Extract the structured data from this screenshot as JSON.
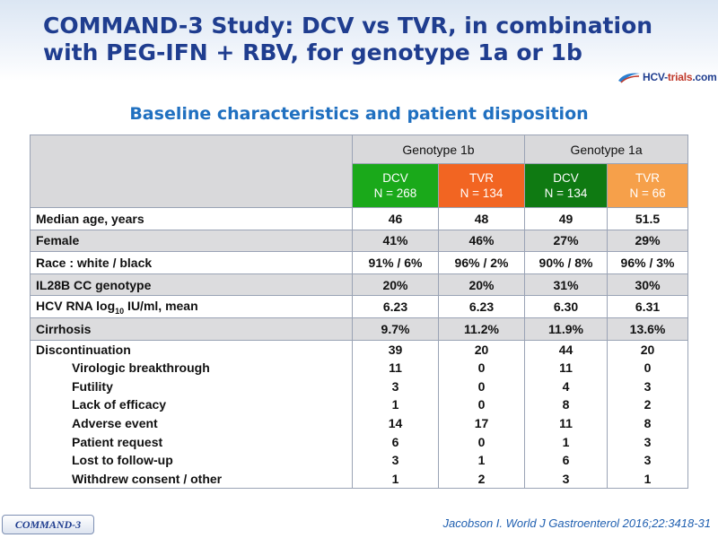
{
  "header": {
    "title_line1": "COMMAND-3 Study: DCV vs TVR, in combination",
    "title_line2": "with PEG-IFN + RBV, for genotype 1a or 1b",
    "logo_text_main": "HCV-",
    "logo_text_accent": "trials",
    "logo_text_end": ".com"
  },
  "subtitle": "Baseline characteristics and patient disposition",
  "table": {
    "genotype_headers": [
      "Genotype 1b",
      "Genotype 1a"
    ],
    "arms": [
      {
        "name": "DCV",
        "n": "N = 268",
        "color": "#1aa91a"
      },
      {
        "name": "TVR",
        "n": "N = 134",
        "color": "#f26522"
      },
      {
        "name": "DCV",
        "n": "N = 134",
        "color": "#0f7a12"
      },
      {
        "name": "TVR",
        "n": "N = 66",
        "color": "#f6a04a"
      }
    ],
    "rows": [
      {
        "label": "Median age, years",
        "values": [
          "46",
          "48",
          "49",
          "51.5"
        ]
      },
      {
        "label": "Female",
        "values": [
          "41%",
          "46%",
          "27%",
          "29%"
        ]
      },
      {
        "label": "Race : white / black",
        "values": [
          "91% / 6%",
          "96% / 2%",
          "90% / 8%",
          "96% / 3%"
        ]
      },
      {
        "label": "IL28B CC genotype",
        "values": [
          "20%",
          "20%",
          "31%",
          "30%"
        ]
      },
      {
        "label_pre": "HCV RNA log",
        "label_sub": "10",
        "label_post": " IU/ml, mean",
        "values": [
          "6.23",
          "6.23",
          "6.30",
          "6.31"
        ]
      },
      {
        "label": "Cirrhosis",
        "values": [
          "9.7%",
          "11.2%",
          "11.9%",
          "13.6%"
        ]
      }
    ],
    "discontinuation": {
      "label": "Discontinuation",
      "values": [
        "39",
        "20",
        "44",
        "20"
      ],
      "reasons": [
        {
          "label": "Virologic breakthrough",
          "values": [
            "11",
            "0",
            "11",
            "0"
          ]
        },
        {
          "label": "Futility",
          "values": [
            "3",
            "0",
            "4",
            "3"
          ]
        },
        {
          "label": "Lack of efficacy",
          "values": [
            "1",
            "0",
            "8",
            "2"
          ]
        },
        {
          "label": "Adverse event",
          "values": [
            "14",
            "17",
            "11",
            "8"
          ]
        },
        {
          "label": "Patient request",
          "values": [
            "6",
            "0",
            "1",
            "3"
          ]
        },
        {
          "label": "Lost to follow-up",
          "values": [
            "3",
            "1",
            "6",
            "3"
          ]
        },
        {
          "label": "Withdrew consent / other",
          "values": [
            "1",
            "2",
            "3",
            "1"
          ]
        }
      ]
    }
  },
  "footer": {
    "badge": "COMMAND-3",
    "citation": "Jacobson I. World J Gastroenterol 2016;22:3418-31"
  }
}
